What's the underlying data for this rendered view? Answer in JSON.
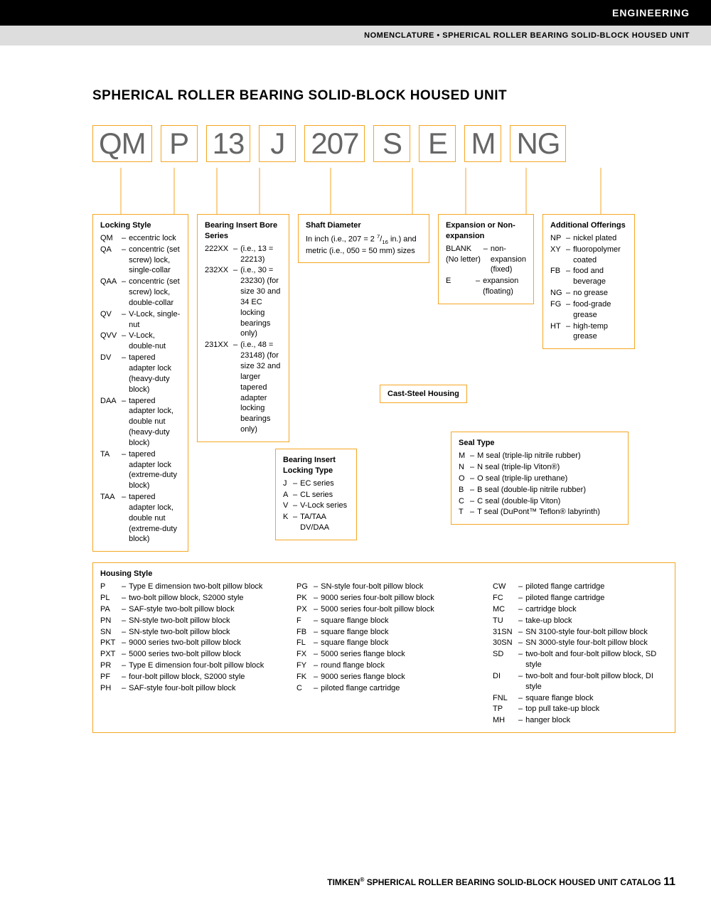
{
  "header": {
    "black": "ENGINEERING",
    "gray": "NOMENCLATURE • SPHERICAL ROLLER BEARING SOLID-BLOCK HOUSED UNIT"
  },
  "title": "SPHERICAL ROLLER BEARING SOLID-BLOCK HOUSED UNIT",
  "codes": [
    "QM",
    "P",
    "13",
    "J",
    "207",
    "S",
    "E",
    "M",
    "NG"
  ],
  "colors": {
    "box_border": "#f5a623",
    "code_text": "#666666"
  },
  "locking_style": {
    "title": "Locking Style",
    "items": [
      {
        "code": "QM",
        "desc": "eccentric lock"
      },
      {
        "code": "QA",
        "desc": "concentric (set screw) lock, single-collar"
      },
      {
        "code": "QAA",
        "desc": "concentric (set screw) lock, double-collar"
      },
      {
        "code": "QV",
        "desc": "V-Lock, single-nut"
      },
      {
        "code": "QVV",
        "desc": "V-Lock, double-nut"
      },
      {
        "code": "DV",
        "desc": "tapered adapter lock (heavy-duty block)"
      },
      {
        "code": "DAA",
        "desc": "tapered adapter lock, double nut (heavy-duty block)"
      },
      {
        "code": "TA",
        "desc": "tapered adapter lock (extreme-duty block)"
      },
      {
        "code": "TAA",
        "desc": "tapered adapter lock, double nut (extreme-duty block)"
      }
    ]
  },
  "bore_series": {
    "title": "Bearing Insert Bore Series",
    "items": [
      {
        "code": "222XX",
        "desc": "(i.e., 13 = 22213)"
      },
      {
        "code": "232XX",
        "desc": "(i.e., 30 = 23230) (for size 30 and 34 EC locking bearings only)"
      },
      {
        "code": "231XX",
        "desc": "(i.e., 48 = 23148) (for size 32 and larger tapered adapter locking bearings only)"
      }
    ]
  },
  "locking_type": {
    "title": "Bearing Insert Locking Type",
    "items": [
      {
        "code": "J",
        "desc": "EC series"
      },
      {
        "code": "A",
        "desc": "CL series"
      },
      {
        "code": "V",
        "desc": "V-Lock series"
      },
      {
        "code": "K",
        "desc": "TA/TAA DV/DAA"
      }
    ]
  },
  "shaft_diameter": {
    "title": "Shaft Diameter",
    "desc": "In inch (i.e., 207 = 2 7/16 in.) and metric (i.e., 050 = 50 mm) sizes"
  },
  "cast_steel": "Cast-Steel Housing",
  "expansion": {
    "title": "Expansion or Non-expansion",
    "items": [
      {
        "code": "BLANK (No letter)",
        "desc": "non-expansion (fixed)"
      },
      {
        "code": "E",
        "desc": "expansion (floating)"
      }
    ]
  },
  "seal_type": {
    "title": "Seal Type",
    "items": [
      {
        "code": "M",
        "desc": "M seal (triple-lip nitrile rubber)"
      },
      {
        "code": "N",
        "desc": "N seal (triple-lip Viton®)"
      },
      {
        "code": "O",
        "desc": "O seal (triple-lip urethane)"
      },
      {
        "code": "B",
        "desc": "B seal (double-lip nitrile rubber)"
      },
      {
        "code": "C",
        "desc": "C seal (double-lip Viton)"
      },
      {
        "code": "T",
        "desc": "T seal (DuPont™ Teflon® labyrinth)"
      }
    ]
  },
  "additional": {
    "title": "Additional Offerings",
    "items": [
      {
        "code": "NP",
        "desc": "nickel plated"
      },
      {
        "code": "XY",
        "desc": "fluoropolymer coated"
      },
      {
        "code": "FB",
        "desc": "food and beverage"
      },
      {
        "code": "NG",
        "desc": "no grease"
      },
      {
        "code": "FG",
        "desc": "food-grade grease"
      },
      {
        "code": "HT",
        "desc": "high-temp grease"
      }
    ]
  },
  "housing": {
    "title": "Housing Style",
    "col1": [
      {
        "code": "P",
        "desc": "Type E dimension two-bolt pillow block"
      },
      {
        "code": "PL",
        "desc": "two-bolt pillow block, S2000 style"
      },
      {
        "code": "PA",
        "desc": "SAF-style two-bolt pillow block"
      },
      {
        "code": "PN",
        "desc": "SN-style two-bolt pillow block"
      },
      {
        "code": "SN",
        "desc": "SN-style two-bolt pillow block"
      },
      {
        "code": "PKT",
        "desc": "9000 series two-bolt pillow block"
      },
      {
        "code": "PXT",
        "desc": "5000 series two-bolt pillow block"
      },
      {
        "code": "PR",
        "desc": "Type E dimension four-bolt pillow block"
      },
      {
        "code": "PF",
        "desc": "four-bolt pillow block, S2000 style"
      },
      {
        "code": "PH",
        "desc": "SAF-style four-bolt pillow block"
      }
    ],
    "col2": [
      {
        "code": "PG",
        "desc": "SN-style four-bolt pillow block"
      },
      {
        "code": "PK",
        "desc": "9000 series four-bolt pillow block"
      },
      {
        "code": "PX",
        "desc": "5000 series four-bolt pillow block"
      },
      {
        "code": "F",
        "desc": "square flange block"
      },
      {
        "code": "FB",
        "desc": "square flange block"
      },
      {
        "code": "FL",
        "desc": "square flange block"
      },
      {
        "code": "FX",
        "desc": "5000 series flange block"
      },
      {
        "code": "FY",
        "desc": "round flange block"
      },
      {
        "code": "FK",
        "desc": "9000 series flange block"
      },
      {
        "code": "C",
        "desc": "piloted flange cartridge"
      }
    ],
    "col3": [
      {
        "code": "CW",
        "desc": "piloted flange cartridge"
      },
      {
        "code": "FC",
        "desc": "piloted flange cartridge"
      },
      {
        "code": "MC",
        "desc": "cartridge block"
      },
      {
        "code": "TU",
        "desc": "take-up block"
      },
      {
        "code": "31SN",
        "desc": "SN 3100-style four-bolt pillow block"
      },
      {
        "code": "30SN",
        "desc": "SN 3000-style four-bolt pillow block"
      },
      {
        "code": "SD",
        "desc": "two-bolt and four-bolt pillow block, SD style"
      },
      {
        "code": "DI",
        "desc": "two-bolt and four-bolt pillow block, DI style"
      },
      {
        "code": "FNL",
        "desc": "square flange block"
      },
      {
        "code": "TP",
        "desc": "top pull take-up block"
      },
      {
        "code": "MH",
        "desc": "hanger block"
      }
    ]
  },
  "footer": "TIMKEN® SPHERICAL ROLLER BEARING SOLID-BLOCK HOUSED UNIT CATALOG 11"
}
